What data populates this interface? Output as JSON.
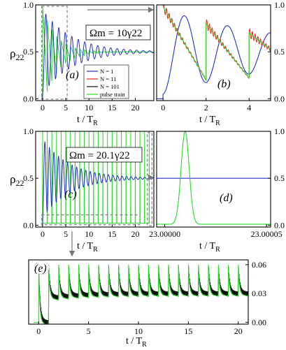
{
  "colors": {
    "n1": "#2233cc",
    "n11": "#ee2222",
    "n101": "#111111",
    "pulse": "#22dd22",
    "box": "#888888",
    "arrow": "#777777"
  },
  "chart_data": [
    {
      "id": "a",
      "type": "line",
      "panel_label": "(a)",
      "xlabel": "t / T",
      "xlabel_sub": "R",
      "ylabel": "ρ",
      "ylabel_sub": "22",
      "xlim": [
        -1.5,
        24
      ],
      "ylim": [
        -0.02,
        1.0
      ],
      "xticks": [
        "0",
        "5",
        "10",
        "15",
        "20"
      ],
      "yticks": [
        "0.0",
        "0.5",
        "1.0"
      ],
      "legend": {
        "placement": "bottom-right",
        "entries": [
          {
            "key": "n1",
            "label": "N = 1"
          },
          {
            "key": "n11",
            "label": "N = 11"
          },
          {
            "key": "n101",
            "label": "N = 101"
          },
          {
            "key": "pulse",
            "label": "pulse train"
          }
        ]
      },
      "annotation": "Ωm = 10γ22",
      "series": [
        {
          "key": "n1",
          "model": "damped oscillation",
          "steady_value": 0.5,
          "first_peak": 0.88,
          "period": 1.4,
          "damping": 0.16
        },
        {
          "key": "pulse",
          "model": "pulse train",
          "steady_value": 0.5,
          "first_peak": 0.98,
          "period": 1.0
        }
      ],
      "zoom_box_x": [
        -0.2,
        5.3
      ]
    },
    {
      "id": "b",
      "type": "line",
      "panel_label": "(b)",
      "xlabel": "t / T",
      "xlabel_sub": "R",
      "xlim": [
        -0.3,
        5.0
      ],
      "ylim": [
        -0.02,
        1.0
      ],
      "xticks": [
        "0",
        "2",
        "4"
      ],
      "yticks": [
        "0.0",
        "0.5",
        "1.0"
      ],
      "series": [
        {
          "key": "n1",
          "model": "damped oscillation",
          "first_peak": 0.9,
          "peak_time": 1.0
        },
        {
          "key": "n11",
          "model": "sawtooth with ripples",
          "peak_times": [
            0,
            2,
            4
          ]
        },
        {
          "key": "pulse",
          "model": "sawtooth",
          "peak_values": [
            0.98,
            0.8,
            0.7
          ],
          "peak_times": [
            0,
            2,
            4
          ]
        }
      ]
    },
    {
      "id": "c",
      "type": "line",
      "panel_label": "(c)",
      "xlabel": "t / T",
      "xlabel_sub": "R",
      "ylabel": "ρ",
      "ylabel_sub": "22",
      "xlim": [
        -1.5,
        24
      ],
      "ylim": [
        -0.02,
        1.0
      ],
      "xticks": [
        "0",
        "5",
        "10",
        "15",
        "20"
      ],
      "yticks": [
        "0.0",
        "0.5",
        "1.0"
      ],
      "annotation": "Ωm = 20.1γ22",
      "series": [
        {
          "key": "n1",
          "model": "damped oscillation",
          "steady_value": 0.5,
          "first_peak": 0.92,
          "period": 0.98
        },
        {
          "key": "pulse",
          "model": "pulse train",
          "peak_value": 1.0,
          "period": 1.0
        }
      ],
      "zoom_box_x": [
        22.6,
        23.6
      ]
    },
    {
      "id": "d",
      "type": "line",
      "panel_label": "(d)",
      "xlabel": "t / T",
      "xlabel_sub": "R",
      "xlim": [
        22.999996,
        23.000052
      ],
      "ylim": [
        -0.02,
        1.0
      ],
      "xticks": [
        "23.00000",
        "23.00005"
      ],
      "yticks": [
        "0.0",
        "0.5",
        "1.0"
      ],
      "series": [
        {
          "key": "n1",
          "model": "constant",
          "value": 0.5
        },
        {
          "key": "pulse",
          "model": "single pulse",
          "peak": 1.0,
          "center": 23.00001
        }
      ]
    },
    {
      "id": "e",
      "type": "line",
      "panel_label": "(e)",
      "xlabel": "t / T",
      "xlabel_sub": "R",
      "xlim": [
        -1.0,
        21.0
      ],
      "ylim": [
        -0.002,
        0.065
      ],
      "xticks": [
        "0",
        "5",
        "10",
        "15",
        "20"
      ],
      "yticks": [
        "0.00",
        "0.03",
        "0.06"
      ],
      "series": [
        {
          "key": "n101",
          "model": "decaying spikes",
          "baseline": 0.03,
          "spike_top": 0.058,
          "period": 1.0
        },
        {
          "key": "pulse",
          "model": "decaying spikes",
          "baseline": 0.03,
          "spike_top": 0.06,
          "period": 1.0
        }
      ]
    }
  ]
}
